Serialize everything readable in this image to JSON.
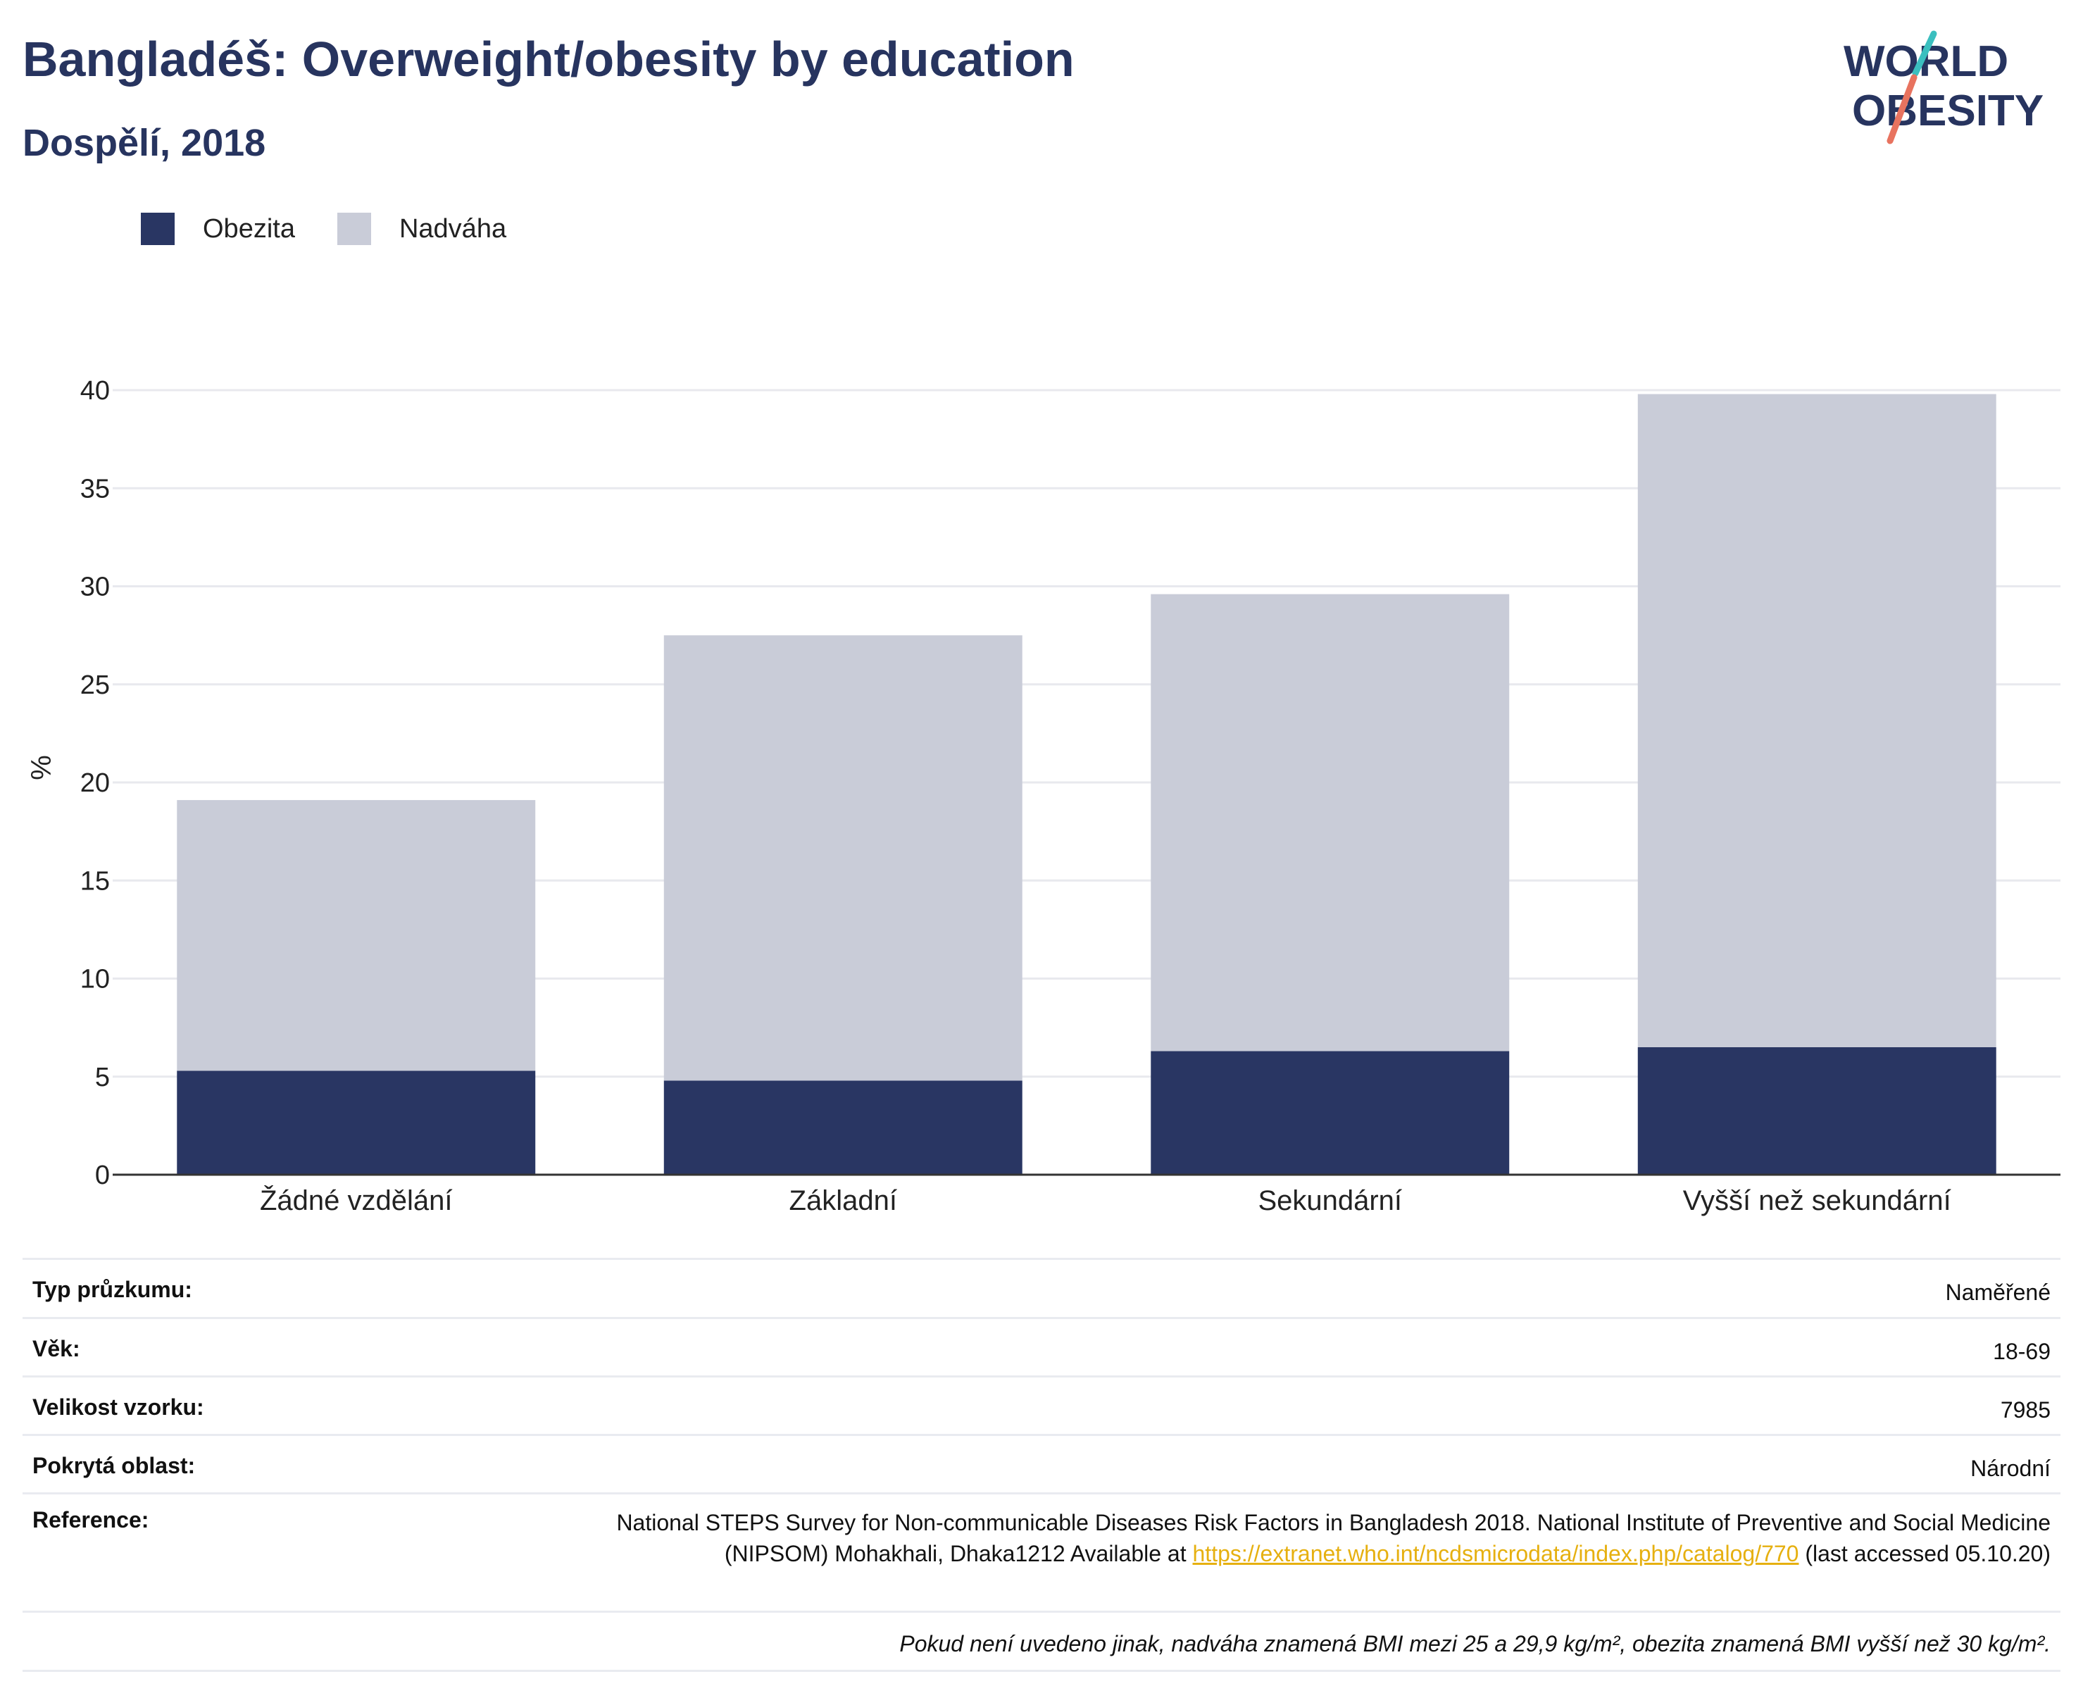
{
  "header": {
    "title": "Bangladéš: Overweight/obesity by education",
    "subtitle": "Dospělí, 2018"
  },
  "logo": {
    "line1": "WORLD",
    "line2": "OBESITY",
    "accent_teal": "#3bbfbf",
    "accent_coral": "#e8735f"
  },
  "colors": {
    "obesity": "#293663",
    "overweight": "#c9ccd8",
    "grid": "#e8e9ee",
    "axis": "#333333"
  },
  "chart_data": {
    "type": "bar",
    "stacked": true,
    "categories": [
      "Žádné vzdělání",
      "Základní",
      "Sekundární",
      "Vyšší než sekundární"
    ],
    "series": [
      {
        "name": "Obezita",
        "values": [
          5.3,
          4.8,
          6.3,
          6.5
        ]
      },
      {
        "name": "Nadváha",
        "values": [
          13.8,
          22.7,
          23.3,
          33.3
        ]
      }
    ],
    "ylabel": "%",
    "xlabel": "",
    "ylim": [
      0,
      40
    ],
    "yticks": [
      0,
      5,
      10,
      15,
      20,
      25,
      30,
      35,
      40
    ],
    "grid": true,
    "legend_position": "top-left"
  },
  "info": {
    "survey_type_label": "Typ průzkumu:",
    "survey_type_value": "Naměřené",
    "age_label": "Věk:",
    "age_value": "18-69",
    "sample_label": "Velikost vzorku:",
    "sample_value": "7985",
    "area_label": "Pokrytá oblast:",
    "area_value": "Národní",
    "reference_label": "Reference:",
    "reference_text": "National STEPS Survey for Non-communicable Diseases Risk Factors in Bangladesh 2018. National Institute of Preventive and Social Medicine (NIPSOM) Mohakhali, Dhaka1212 Available at",
    "reference_link": "https://extranet.who.int/ncdsmicrodata/index.php/catalog/770",
    "reference_suffix": "(last accessed 05.10.20)",
    "note": "Pokud není uvedeno jinak, nadváha znamená BMI mezi 25 a 29,9 kg/m², obezita znamená BMI vyšší než 30 kg/m²."
  }
}
